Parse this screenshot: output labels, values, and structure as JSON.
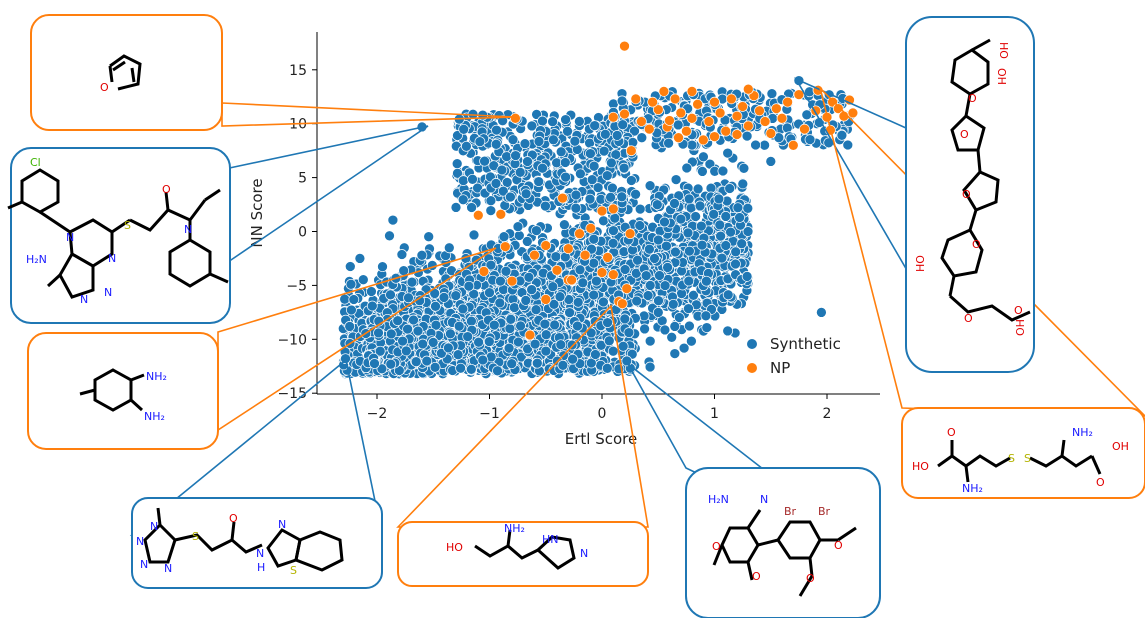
{
  "chart_data": {
    "type": "scatter",
    "xlabel": "Ertl Score",
    "ylabel": "NN Score",
    "xlim": [
      -2.5,
      2.5
    ],
    "ylim": [
      -15,
      18.5
    ],
    "xticks": [
      -2,
      -1,
      0,
      1,
      2
    ],
    "yticks": [
      -15,
      -10,
      -5,
      0,
      5,
      10,
      15
    ],
    "xtick_labels": [
      "−2",
      "−1",
      "0",
      "1",
      "2"
    ],
    "ytick_labels": [
      "−15",
      "−10",
      "−5",
      "0",
      "5",
      "10",
      "15"
    ],
    "legend_position": "lower-right",
    "colors": {
      "Synthetic": "#1f77b4",
      "NP": "#ff7f0e"
    },
    "series": [
      {
        "name": "Synthetic",
        "description_of_cloud": "dense cloud of several thousand points spanning roughly x -2.3..2.2, y -13..13",
        "highlighted_points": [
          {
            "x": -1.6,
            "y": 9.7
          },
          {
            "x": -2.28,
            "y": -11.8
          },
          {
            "x": 0.22,
            "y": -12.0
          },
          {
            "x": 1.75,
            "y": 14.0
          }
        ]
      },
      {
        "name": "NP",
        "points": [
          [
            -0.77,
            10.5
          ],
          [
            0.2,
            17.2
          ],
          [
            0.1,
            10.6
          ],
          [
            0.2,
            10.9
          ],
          [
            0.3,
            12.3
          ],
          [
            0.35,
            10.2
          ],
          [
            0.42,
            9.5
          ],
          [
            0.5,
            11.3
          ],
          [
            0.58,
            9.7
          ],
          [
            0.65,
            12.3
          ],
          [
            0.7,
            11.0
          ],
          [
            0.75,
            9.3
          ],
          [
            0.8,
            10.5
          ],
          [
            0.85,
            11.8
          ],
          [
            0.9,
            8.5
          ],
          [
            0.95,
            10.2
          ],
          [
            1.0,
            12.0
          ],
          [
            1.05,
            11.0
          ],
          [
            1.1,
            9.3
          ],
          [
            1.15,
            12.3
          ],
          [
            1.2,
            10.7
          ],
          [
            1.25,
            11.6
          ],
          [
            1.3,
            9.8
          ],
          [
            1.35,
            12.6
          ],
          [
            1.4,
            11.2
          ],
          [
            1.45,
            10.2
          ],
          [
            1.5,
            9.1
          ],
          [
            1.55,
            11.4
          ],
          [
            1.6,
            10.5
          ],
          [
            1.65,
            12.0
          ],
          [
            1.7,
            8.0
          ],
          [
            1.8,
            9.5
          ],
          [
            1.9,
            11.2
          ],
          [
            2.0,
            10.6
          ],
          [
            2.05,
            12.0
          ],
          [
            2.1,
            11.4
          ],
          [
            2.15,
            10.7
          ],
          [
            2.2,
            12.2
          ],
          [
            2.23,
            11.0
          ],
          [
            1.92,
            13.1
          ],
          [
            0.55,
            13.0
          ],
          [
            0.8,
            13.0
          ],
          [
            1.3,
            13.2
          ],
          [
            1.0,
            8.8
          ],
          [
            1.2,
            9.0
          ],
          [
            0.45,
            12.0
          ],
          [
            0.6,
            10.3
          ],
          [
            1.75,
            12.7
          ],
          [
            2.03,
            9.4
          ],
          [
            0.68,
            8.7
          ],
          [
            -1.1,
            1.5
          ],
          [
            -0.9,
            1.6
          ],
          [
            -0.5,
            -1.3
          ],
          [
            -0.3,
            -1.6
          ],
          [
            -0.2,
            -0.2
          ],
          [
            -0.1,
            0.3
          ],
          [
            0.0,
            1.9
          ],
          [
            0.1,
            2.1
          ],
          [
            -0.8,
            -4.6
          ],
          [
            -0.4,
            -3.6
          ],
          [
            -0.3,
            -4.5
          ],
          [
            0.0,
            -3.8
          ],
          [
            0.1,
            -4.0
          ],
          [
            -0.5,
            -6.3
          ],
          [
            -0.27,
            -4.5
          ],
          [
            -0.86,
            -1.4
          ],
          [
            -1.05,
            -3.7
          ],
          [
            0.25,
            -0.2
          ],
          [
            0.05,
            -2.4
          ],
          [
            0.22,
            -5.3
          ],
          [
            -0.15,
            -2.2
          ],
          [
            -0.35,
            3.1
          ],
          [
            0.26,
            7.5
          ],
          [
            0.15,
            -6.5
          ],
          [
            -0.64,
            -9.6
          ],
          [
            0.18,
            -6.7
          ],
          [
            -0.6,
            -2.2
          ]
        ]
      }
    ]
  },
  "insets": [
    {
      "label": "furan",
      "border": "#ff7f0e",
      "atoms": [
        "O"
      ]
    },
    {
      "label": "synthetic-pyrazolopyrimidine",
      "border": "#1f77b4",
      "atoms": [
        "Cl",
        "N",
        "N",
        "O",
        "S",
        "N",
        "H₂N",
        "N",
        "N"
      ]
    },
    {
      "label": "diaminotoluene",
      "border": "#ff7f0e",
      "atoms": [
        "NH₂",
        "NH₂"
      ]
    },
    {
      "label": "synthetic-tetrazole",
      "border": "#1f77b4",
      "atoms": [
        "N",
        "N",
        "N",
        "N",
        "S",
        "O",
        "N",
        "H",
        "N",
        "S"
      ]
    },
    {
      "label": "histidinol",
      "border": "#ff7f0e",
      "atoms": [
        "HO",
        "NH₂",
        "HN",
        "N"
      ]
    },
    {
      "label": "synthetic-pyran",
      "border": "#1f77b4",
      "atoms": [
        "H₂N",
        "N",
        "Br",
        "Br",
        "O",
        "O",
        "O",
        "O"
      ]
    },
    {
      "label": "natural-polyether",
      "border": "#1f77b4",
      "atoms": [
        "HO",
        "OH",
        "O",
        "O",
        "O",
        "O",
        "HO",
        "O",
        "O",
        "OH"
      ]
    },
    {
      "label": "cystine",
      "border": "#ff7f0e",
      "atoms": [
        "O",
        "HO",
        "NH₂",
        "S",
        "S",
        "NH₂",
        "OH",
        "O"
      ]
    }
  ]
}
